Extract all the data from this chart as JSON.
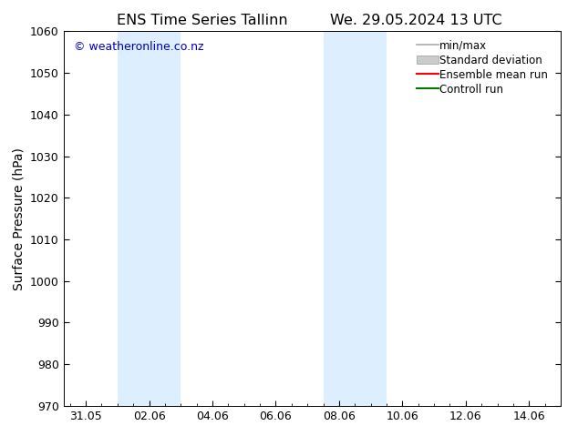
{
  "title_left": "ENS Time Series Tallinn",
  "title_right": "We. 29.05.2024 13 UTC",
  "ylabel": "Surface Pressure (hPa)",
  "ylim": [
    970,
    1060
  ],
  "yticks": [
    970,
    980,
    990,
    1000,
    1010,
    1020,
    1030,
    1040,
    1050,
    1060
  ],
  "xtick_labels": [
    "31.05",
    "02.06",
    "04.06",
    "06.06",
    "08.06",
    "10.06",
    "12.06",
    "14.06"
  ],
  "xtick_positions": [
    0,
    2,
    4,
    6,
    8,
    10,
    12,
    14
  ],
  "xlim": [
    -0.7,
    15.0
  ],
  "shaded_bands": [
    {
      "x_start": 1.0,
      "x_end": 3.0
    },
    {
      "x_start": 7.5,
      "x_end": 9.5
    }
  ],
  "shaded_color": "#ddeeff",
  "background_color": "#ffffff",
  "watermark_text": "© weatheronline.co.nz",
  "watermark_color": "#0000bb",
  "legend_items": [
    {
      "label": "min/max",
      "type": "line",
      "color": "#aaaaaa",
      "lw": 1.2
    },
    {
      "label": "Standard deviation",
      "type": "box",
      "color": "#cccccc"
    },
    {
      "label": "Ensemble mean run",
      "type": "line",
      "color": "#ff0000",
      "lw": 1.5
    },
    {
      "label": "Controll run",
      "type": "line",
      "color": "#007700",
      "lw": 1.5
    }
  ],
  "title_fontsize": 11.5,
  "ylabel_fontsize": 10,
  "tick_fontsize": 9,
  "legend_fontsize": 8.5,
  "watermark_fontsize": 9
}
